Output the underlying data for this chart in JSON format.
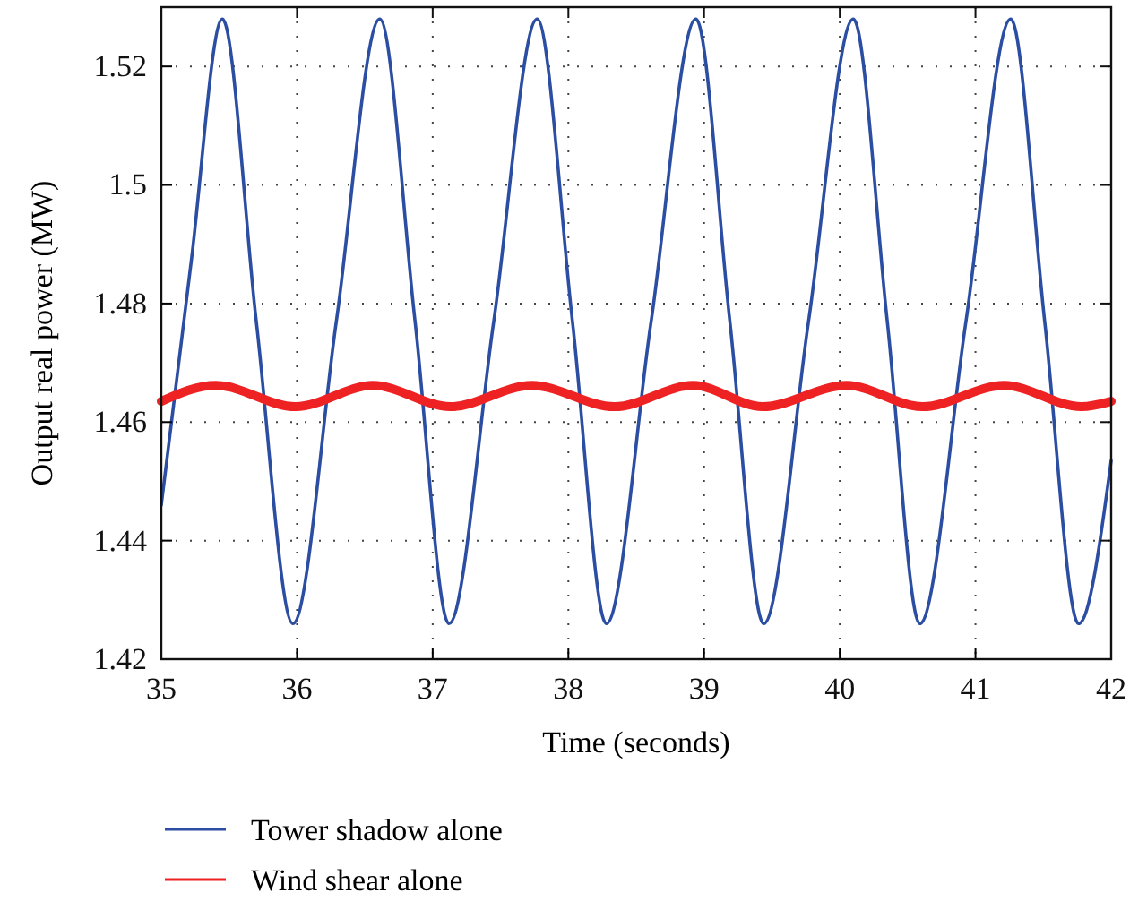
{
  "chart_data": {
    "type": "line",
    "xlabel": "Time (seconds)",
    "ylabel": "Output real power (MW)",
    "xlim": [
      35,
      42
    ],
    "xticks": [
      35,
      36,
      37,
      38,
      39,
      40,
      41,
      42
    ],
    "ylim": [
      1.42,
      1.53
    ],
    "yticks": [
      1.42,
      1.44,
      1.46,
      1.48,
      1.5,
      1.52
    ],
    "grid": true,
    "legend": "bottom",
    "line_style": "solid",
    "marker": "none",
    "series": [
      {
        "name": "Tower shadow alone",
        "color": "#2b4ea2",
        "x": [
          35,
          35.22,
          35.45,
          35.7,
          35.97,
          36.29,
          36.61,
          36.87,
          37.12,
          37.45,
          37.77,
          38.03,
          38.28,
          38.61,
          38.94,
          39.19,
          39.44,
          39.77,
          40.1,
          40.35,
          40.59,
          40.93,
          41.26,
          41.51,
          41.76,
          42
        ],
        "values": [
          1.446,
          1.487,
          1.528,
          1.477,
          1.426,
          1.477,
          1.528,
          1.477,
          1.426,
          1.477,
          1.528,
          1.477,
          1.426,
          1.477,
          1.528,
          1.477,
          1.426,
          1.477,
          1.528,
          1.477,
          1.426,
          1.477,
          1.528,
          1.477,
          1.426,
          1.4535
        ]
      },
      {
        "name": "Wind shear alone",
        "color": "#ee2222",
        "x": [
          35,
          35.4,
          35.99,
          36.56,
          37.13,
          37.73,
          38.34,
          38.92,
          39.43,
          40.05,
          40.61,
          41.21,
          41.78,
          42
        ],
        "values": [
          1.4635,
          1.4662,
          1.4626,
          1.4662,
          1.4626,
          1.4662,
          1.4626,
          1.4662,
          1.4626,
          1.4662,
          1.4626,
          1.4662,
          1.4626,
          1.4635
        ]
      }
    ]
  }
}
